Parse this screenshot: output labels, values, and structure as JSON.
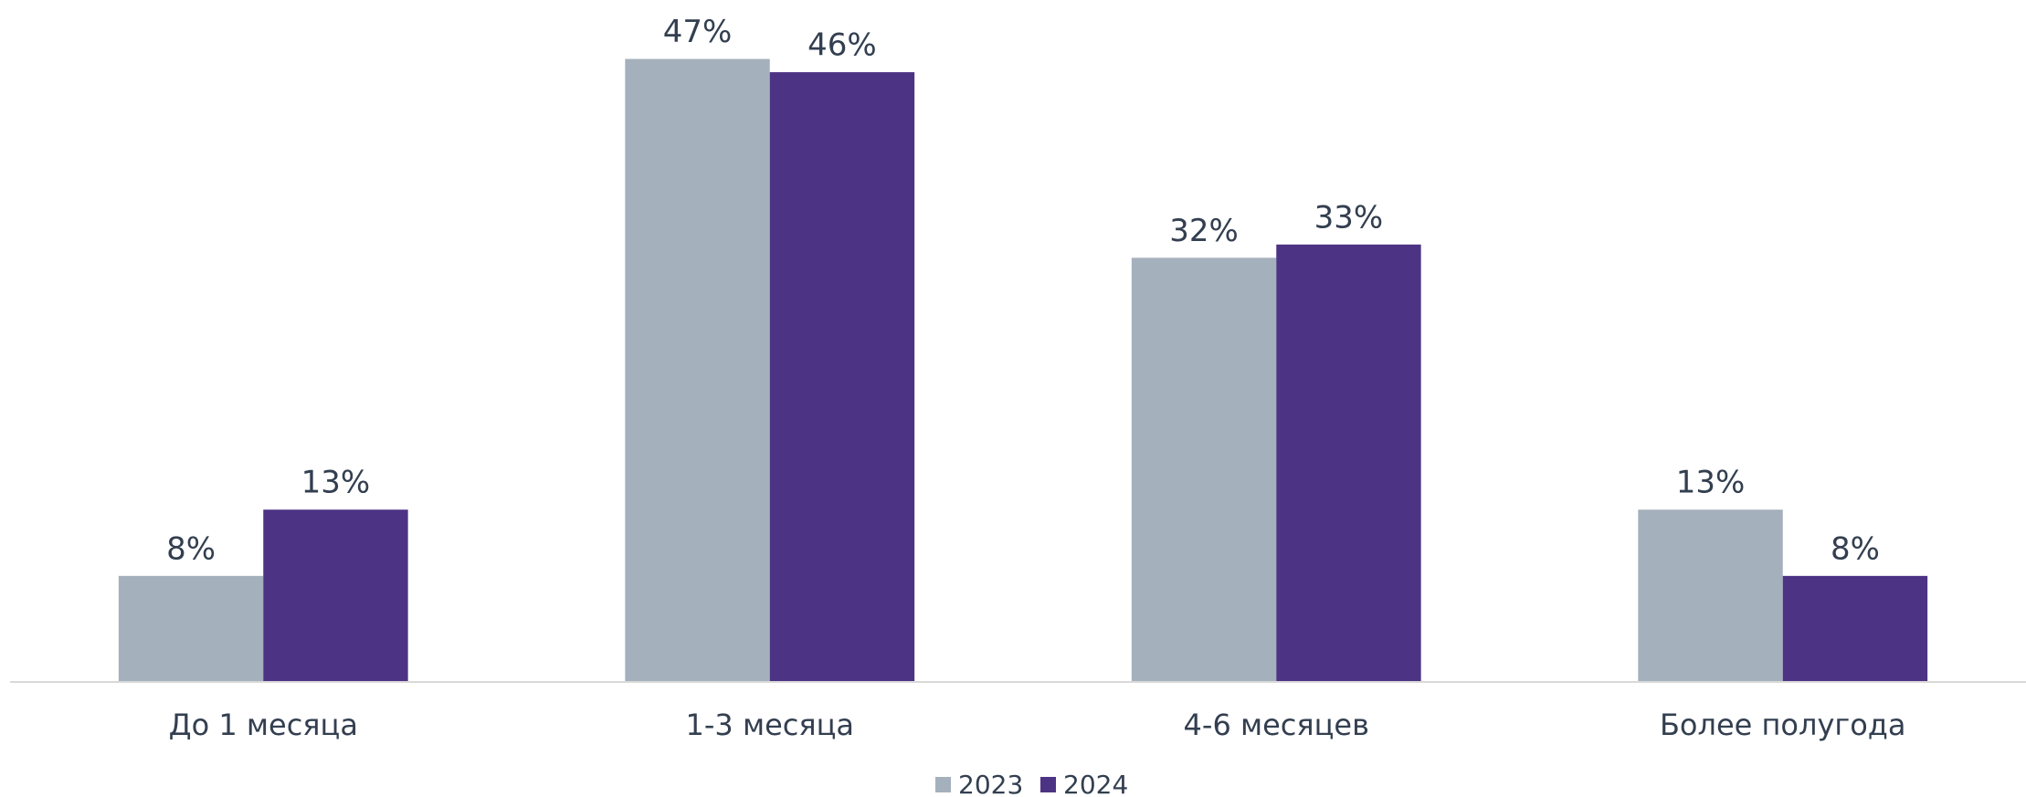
{
  "chart_data": {
    "type": "bar",
    "categories": [
      "До 1 месяца",
      "1-3 месяца",
      "4-6 месяцев",
      "Более полугода"
    ],
    "series": [
      {
        "name": "2023",
        "color": "#a5b0bd",
        "values": [
          8,
          47,
          32,
          13
        ],
        "value_labels": [
          "8%",
          "47%",
          "32%",
          "13%"
        ]
      },
      {
        "name": "2024",
        "color": "#4d3384",
        "values": [
          13,
          46,
          33,
          8
        ],
        "value_labels": [
          "13%",
          "46%",
          "33%",
          "8%"
        ]
      }
    ],
    "ylim": [
      0,
      50
    ],
    "grid": false,
    "legend": "bottom"
  }
}
